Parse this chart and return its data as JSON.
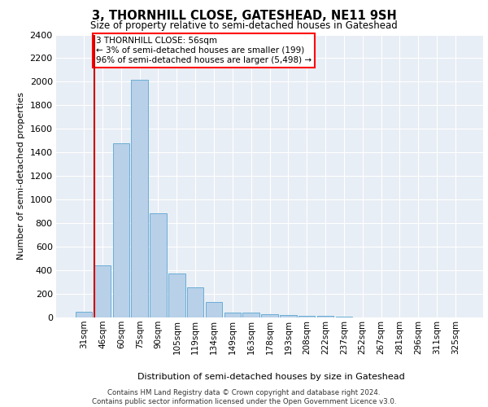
{
  "title": "3, THORNHILL CLOSE, GATESHEAD, NE11 9SH",
  "subtitle": "Size of property relative to semi-detached houses in Gateshead",
  "xlabel": "Distribution of semi-detached houses by size in Gateshead",
  "ylabel": "Number of semi-detached properties",
  "bar_color": "#b8d0e8",
  "bar_edge_color": "#6aaed6",
  "annotation_text": "3 THORNHILL CLOSE: 56sqm\n← 3% of semi-detached houses are smaller (199)\n96% of semi-detached houses are larger (5,498) →",
  "categories": [
    "31sqm",
    "46sqm",
    "60sqm",
    "75sqm",
    "90sqm",
    "105sqm",
    "119sqm",
    "134sqm",
    "149sqm",
    "163sqm",
    "178sqm",
    "193sqm",
    "208sqm",
    "222sqm",
    "237sqm",
    "252sqm",
    "267sqm",
    "281sqm",
    "296sqm",
    "311sqm",
    "325sqm"
  ],
  "values": [
    45,
    440,
    1480,
    2020,
    885,
    375,
    255,
    130,
    40,
    40,
    30,
    22,
    15,
    12,
    8,
    0,
    0,
    0,
    0,
    0,
    0
  ],
  "ylim": [
    0,
    2400
  ],
  "yticks": [
    0,
    200,
    400,
    600,
    800,
    1000,
    1200,
    1400,
    1600,
    1800,
    2000,
    2200,
    2400
  ],
  "footer_line1": "Contains HM Land Registry data © Crown copyright and database right 2024.",
  "footer_line2": "Contains public sector information licensed under the Open Government Licence v3.0.",
  "background_color": "#e8eef5",
  "grid_color": "#ffffff",
  "property_bar_index": 1,
  "red_line_color": "#cc0000"
}
